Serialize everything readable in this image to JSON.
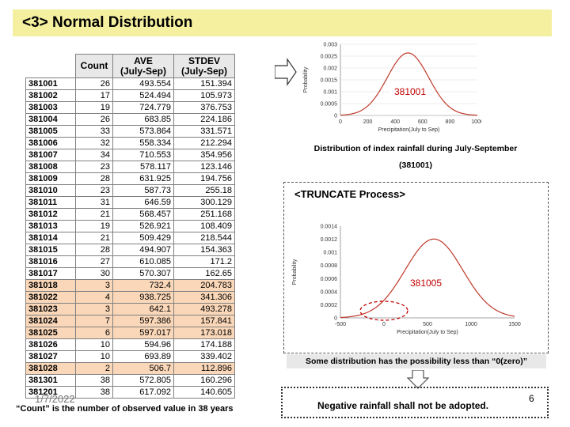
{
  "title": "<3> Normal Distribution",
  "table": {
    "headers": [
      "",
      "Count",
      "AVE\n(July-Sep)",
      "STDEV\n(July-Sep)"
    ],
    "rows": [
      {
        "id": "381001",
        "count": "26",
        "ave": "493.554",
        "stdev": "151.394",
        "hl": false
      },
      {
        "id": "381002",
        "count": "17",
        "ave": "524.494",
        "stdev": "105.973",
        "hl": false
      },
      {
        "id": "381003",
        "count": "19",
        "ave": "724.779",
        "stdev": "376.753",
        "hl": false
      },
      {
        "id": "381004",
        "count": "26",
        "ave": "683.85",
        "stdev": "224.186",
        "hl": false
      },
      {
        "id": "381005",
        "count": "33",
        "ave": "573.864",
        "stdev": "331.571",
        "hl": false
      },
      {
        "id": "381006",
        "count": "32",
        "ave": "558.334",
        "stdev": "212.294",
        "hl": false
      },
      {
        "id": "381007",
        "count": "34",
        "ave": "710.553",
        "stdev": "354.956",
        "hl": false
      },
      {
        "id": "381008",
        "count": "23",
        "ave": "578.117",
        "stdev": "123.146",
        "hl": false
      },
      {
        "id": "381009",
        "count": "28",
        "ave": "631.925",
        "stdev": "194.756",
        "hl": false
      },
      {
        "id": "381010",
        "count": "23",
        "ave": "587.73",
        "stdev": "255.18",
        "hl": false
      },
      {
        "id": "381011",
        "count": "31",
        "ave": "646.59",
        "stdev": "300.129",
        "hl": false
      },
      {
        "id": "381012",
        "count": "21",
        "ave": "568.457",
        "stdev": "251.168",
        "hl": false
      },
      {
        "id": "381013",
        "count": "19",
        "ave": "526.921",
        "stdev": "108.409",
        "hl": false
      },
      {
        "id": "381014",
        "count": "21",
        "ave": "509.429",
        "stdev": "218.544",
        "hl": false
      },
      {
        "id": "381015",
        "count": "28",
        "ave": "494.907",
        "stdev": "154.363",
        "hl": false
      },
      {
        "id": "381016",
        "count": "27",
        "ave": "610.085",
        "stdev": "171.2",
        "hl": false
      },
      {
        "id": "381017",
        "count": "30",
        "ave": "570.307",
        "stdev": "162.65",
        "hl": false
      },
      {
        "id": "381018",
        "count": "3",
        "ave": "732.4",
        "stdev": "204.783",
        "hl": true
      },
      {
        "id": "381022",
        "count": "4",
        "ave": "938.725",
        "stdev": "341.306",
        "hl": true
      },
      {
        "id": "381023",
        "count": "3",
        "ave": "642.1",
        "stdev": "493.278",
        "hl": true
      },
      {
        "id": "381024",
        "count": "7",
        "ave": "597.386",
        "stdev": "157.841",
        "hl": true
      },
      {
        "id": "381025",
        "count": "6",
        "ave": "597.017",
        "stdev": "173.018",
        "hl": true
      },
      {
        "id": "381026",
        "count": "10",
        "ave": "594.96",
        "stdev": "174.188",
        "hl": false
      },
      {
        "id": "381027",
        "count": "10",
        "ave": "693.89",
        "stdev": "339.402",
        "hl": false
      },
      {
        "id": "381028",
        "count": "2",
        "ave": "506.7",
        "stdev": "112.896",
        "hl": true
      },
      {
        "id": "381301",
        "count": "38",
        "ave": "572.805",
        "stdev": "160.296",
        "hl": false
      },
      {
        "id": "381201",
        "count": "38",
        "ave": "617.092",
        "stdev": "140.605",
        "hl": false
      }
    ]
  },
  "footer_date": "1/7/2022",
  "footer_note": "“Count” is the number of observed value in 38 years",
  "chart1_label": "381001",
  "caption1": "Distribution of index rainfall during July-September",
  "caption2": "(381001)",
  "truncate_title": "<TRUNCATE Process>",
  "chart2_label": "381005",
  "note": "Some distribution has the possibility less than “0(zero)”",
  "negative": "Negative rainfall shall not be adopted.",
  "page_number": "6",
  "chart_data": [
    {
      "type": "line",
      "series": [
        {
          "name": "381001",
          "mean": 493.554,
          "stdev": 151.394
        }
      ],
      "xlabel": "Precipitation(July to Sep)",
      "ylabel": "Probability",
      "xticks": [
        "0",
        "200",
        "400",
        "600",
        "800",
        "1000"
      ],
      "yticks": [
        "0",
        "0.0005",
        "0.001",
        "0.0015",
        "0.002",
        "0.0025",
        "0.003"
      ],
      "xlim": [
        0,
        1000
      ],
      "ylim": [
        0,
        0.003
      ]
    },
    {
      "type": "line",
      "series": [
        {
          "name": "381005",
          "mean": 573.864,
          "stdev": 331.571
        }
      ],
      "xlabel": "Precipitation(July to Sep)",
      "ylabel": "Probability",
      "xticks": [
        "-500",
        "0",
        "500",
        "1000",
        "1500"
      ],
      "yticks": [
        "0",
        "0.0002",
        "0.0004",
        "0.0006",
        "0.0008",
        "0.001",
        "0.0012",
        "0.0014"
      ],
      "xlim": [
        -500,
        1500
      ],
      "ylim": [
        0,
        0.0014
      ]
    }
  ]
}
